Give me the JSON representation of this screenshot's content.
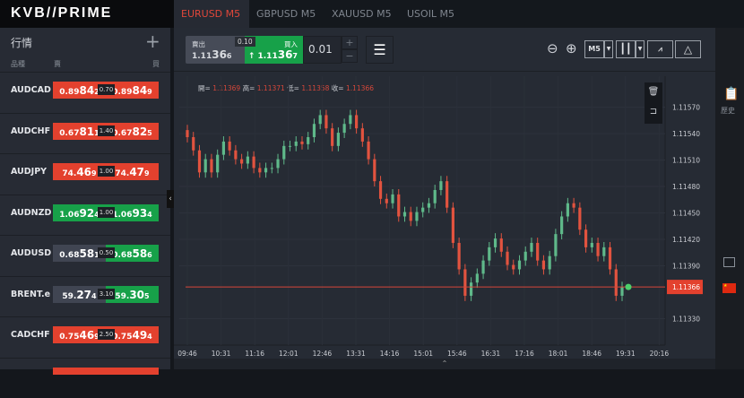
{
  "logo": "KVB//PRIME",
  "watchlist": {
    "title": "行情",
    "add": "+",
    "col_symbol": "品種",
    "col_sell": "賣",
    "col_buy": "買",
    "rows": [
      {
        "symbol": "AUDCAD",
        "bid": {
          "pre": "0.89",
          "big": "84",
          "post": "2",
          "color": "red"
        },
        "spread": "0.70",
        "ask": {
          "pre": "0.89",
          "big": "84",
          "post": "9",
          "color": "red"
        }
      },
      {
        "symbol": "AUDCHF",
        "bid": {
          "pre": "0.67",
          "big": "81",
          "post": "1",
          "color": "red"
        },
        "spread": "1.40",
        "ask": {
          "pre": "0.67",
          "big": "82",
          "post": "5",
          "color": "red"
        }
      },
      {
        "symbol": "AUDJPY",
        "bid": {
          "pre": "74.",
          "big": "46",
          "post": "9",
          "color": "red"
        },
        "spread": "1.00",
        "ask": {
          "pre": "74.",
          "big": "47",
          "post": "9",
          "color": "red"
        }
      },
      {
        "symbol": "AUDNZD",
        "bid": {
          "pre": "1.06",
          "big": "92",
          "post": "4",
          "color": "green"
        },
        "spread": "1.00",
        "ask": {
          "pre": "1.06",
          "big": "93",
          "post": "4",
          "color": "green"
        }
      },
      {
        "symbol": "AUDUSD",
        "bid": {
          "pre": "0.68",
          "big": "58",
          "post": "1",
          "color": "grey"
        },
        "spread": "0.50",
        "ask": {
          "pre": "0.68",
          "big": "58",
          "post": "6",
          "color": "green"
        }
      },
      {
        "symbol": "BRENT.e",
        "bid": {
          "pre": "59.",
          "big": "27",
          "post": "4",
          "color": "grey"
        },
        "spread": "3.10",
        "ask": {
          "pre": "59.",
          "big": "30",
          "post": "5",
          "color": "green"
        }
      },
      {
        "symbol": "CADCHF",
        "bid": {
          "pre": "0.75",
          "big": "46",
          "post": "9",
          "color": "red"
        },
        "spread": "2.50",
        "ask": {
          "pre": "0.75",
          "big": "49",
          "post": "4",
          "color": "red"
        }
      }
    ]
  },
  "tabs": [
    {
      "label": "EURUSD M5",
      "active": true
    },
    {
      "label": "GBPUSD M5"
    },
    {
      "label": "XAUUSD M5"
    },
    {
      "label": "USOIL M5"
    }
  ],
  "trade": {
    "sell_label": "賣出",
    "sell": {
      "pre": "1.11",
      "big": "36",
      "post": "6"
    },
    "spread": "0.10",
    "buy_label": "買入",
    "buy_arrow": "↑",
    "buy": {
      "pre": "1.11",
      "big": "36",
      "post": "7"
    },
    "lot": "0.01",
    "plus": "+",
    "minus": "−"
  },
  "toolbar": {
    "timeframe": "M5"
  },
  "ohlc": {
    "o_label": "開=",
    "o": "1.11369",
    "h_label": "高=",
    "h": "1.11371",
    "l_label": "低=",
    "l": "1.11358",
    "c_label": "收=",
    "c": "1.11366"
  },
  "side": {
    "history": "歷史"
  },
  "colors": {
    "up": "#5fb98a",
    "down": "#e2533f",
    "red": "#e3412e",
    "green": "#17a149"
  },
  "chart_data": {
    "type": "candlestick",
    "symbol": "EURUSD",
    "timeframe": "M5",
    "x_ticks": [
      "09:46",
      "10:31",
      "11:16",
      "12:01",
      "12:46",
      "13:31",
      "14:16",
      "15:01",
      "15:46",
      "16:31",
      "17:16",
      "18:01",
      "18:46",
      "19:31",
      "20:16"
    ],
    "y_ticks": [
      "1.11570",
      "1.11540",
      "1.11510",
      "1.11480",
      "1.11450",
      "1.11420",
      "1.11390",
      "1.11330"
    ],
    "ylim": [
      1.113,
      1.11595
    ],
    "current_price": "1.11366",
    "closes": [
      1.11536,
      1.11521,
      1.11496,
      1.11511,
      1.11496,
      1.11516,
      1.11531,
      1.11521,
      1.11511,
      1.11506,
      1.11514,
      1.11501,
      1.11496,
      1.11501,
      1.11501,
      1.11511,
      1.11526,
      1.11526,
      1.11531,
      1.11528,
      1.11536,
      1.11551,
      1.11561,
      1.11546,
      1.11526,
      1.11541,
      1.11551,
      1.11561,
      1.11546,
      1.11531,
      1.11511,
      1.11486,
      1.11466,
      1.11461,
      1.11471,
      1.11446,
      1.11451,
      1.11441,
      1.11451,
      1.11456,
      1.11461,
      1.11476,
      1.11486,
      1.11456,
      1.11416,
      1.11386,
      1.11356,
      1.11371,
      1.11381,
      1.11396,
      1.11411,
      1.11421,
      1.11406,
      1.11391,
      1.11386,
      1.11396,
      1.11406,
      1.11416,
      1.11396,
      1.11386,
      1.11401,
      1.11426,
      1.11446,
      1.11461,
      1.11456,
      1.11431,
      1.11411,
      1.11416,
      1.11401,
      1.11411,
      1.11386,
      1.11356,
      1.11366
    ],
    "grid": true
  }
}
